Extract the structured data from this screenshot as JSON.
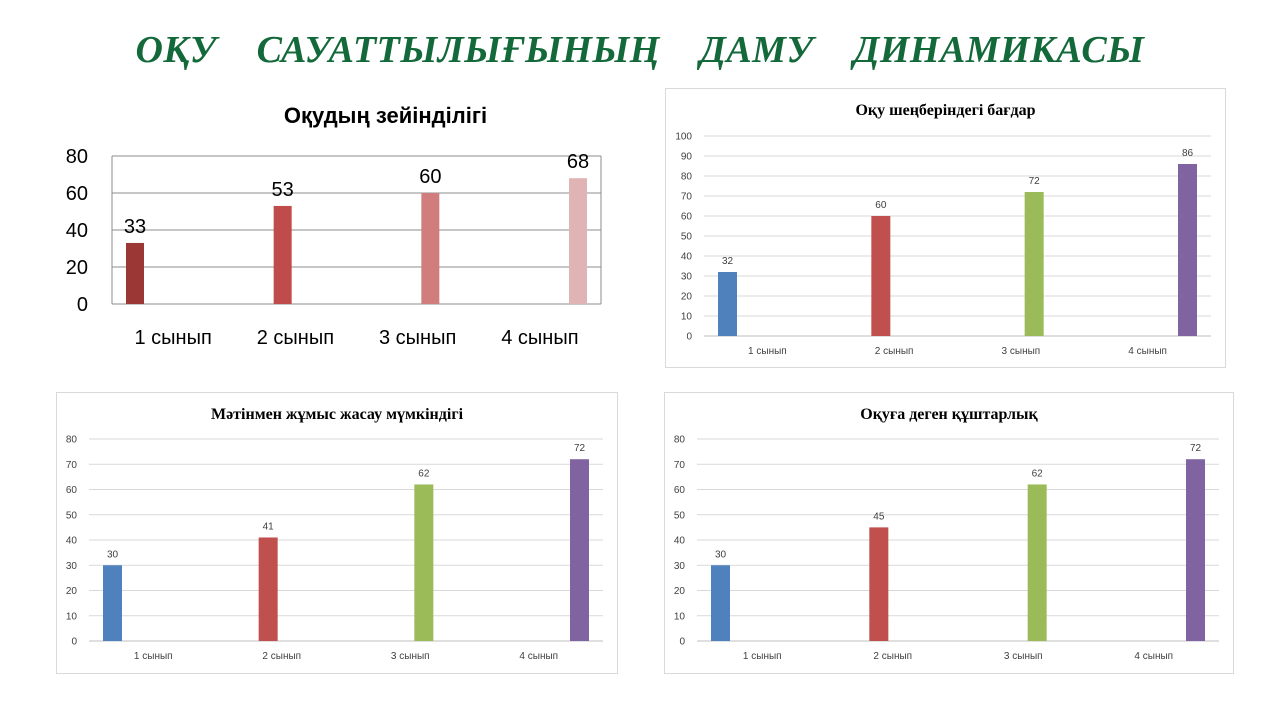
{
  "slide": {
    "title": "ОҚУ САУАТТЫЛЫҒЫНЫҢ ДАМУ ДИНАМИКАСЫ"
  },
  "chart_data": [
    {
      "id": "reading-mindfulness",
      "type": "bar",
      "title": "Оқудың зейінділігі",
      "categories": [
        "1 сынып",
        "2 сынып",
        "3 сынып",
        "4 сынып"
      ],
      "values": [
        33,
        53,
        60,
        68
      ],
      "colors": [
        "#9b3836",
        "#bf4b4b",
        "#d17d7d",
        "#e0b4b4"
      ],
      "ylim": [
        0,
        80
      ],
      "yticks": [
        0,
        20,
        40,
        60,
        80
      ],
      "grid": true,
      "legend": "none"
    },
    {
      "id": "reading-circle-orientation",
      "type": "bar",
      "title": "Оқу шеңберіндегі бағдар",
      "categories": [
        "1 сынып",
        "2 сынып",
        "3 сынып",
        "4 сынып"
      ],
      "values": [
        32,
        60,
        72,
        86
      ],
      "colors": [
        "#4f81bd",
        "#c0504d",
        "#9bbb59",
        "#8064a2"
      ],
      "ylim": [
        0,
        100
      ],
      "yticks": [
        0,
        10,
        20,
        30,
        40,
        50,
        60,
        70,
        80,
        90,
        100
      ],
      "grid": true,
      "legend": "none"
    },
    {
      "id": "text-work-ability",
      "type": "bar",
      "title": "Мәтінмен жұмыс  жасау  мүмкіндігі",
      "categories": [
        "1 сынып",
        "2 сынып",
        "3 сынып",
        "4 сынып"
      ],
      "values": [
        30,
        41,
        62,
        72
      ],
      "colors": [
        "#4f81bd",
        "#c0504d",
        "#9bbb59",
        "#8064a2"
      ],
      "ylim": [
        0,
        80
      ],
      "yticks": [
        0,
        10,
        20,
        30,
        40,
        50,
        60,
        70,
        80
      ],
      "grid": true,
      "legend": "none"
    },
    {
      "id": "reading-passion",
      "type": "bar",
      "title": "Оқуға деген  құштарлық",
      "categories": [
        "1 сынып",
        "2 сынып",
        "3 сынып",
        "4 сынып"
      ],
      "values": [
        30,
        45,
        62,
        72
      ],
      "colors": [
        "#4f81bd",
        "#c0504d",
        "#9bbb59",
        "#8064a2"
      ],
      "ylim": [
        0,
        80
      ],
      "yticks": [
        0,
        10,
        20,
        30,
        40,
        50,
        60,
        70,
        80
      ],
      "grid": true,
      "legend": "none"
    }
  ]
}
